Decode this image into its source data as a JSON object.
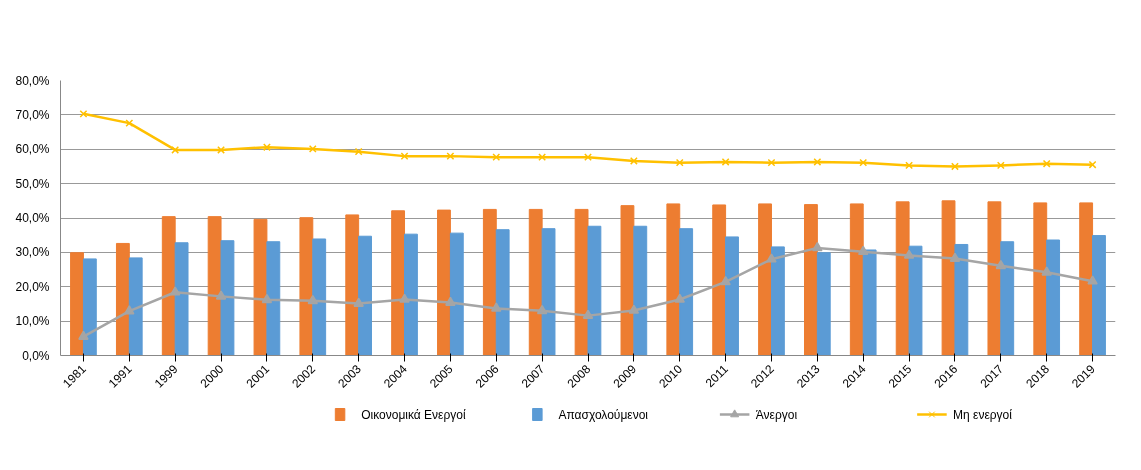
{
  "chart_data": {
    "type": "bar",
    "categories": [
      "1981",
      "1991",
      "1999",
      "2000",
      "2001",
      "2002",
      "2003",
      "2004",
      "2005",
      "2006",
      "2007",
      "2008",
      "2009",
      "2010",
      "2011",
      "2012",
      "2013",
      "2014",
      "2015",
      "2016",
      "2017",
      "2018",
      "2019"
    ],
    "series": [
      {
        "name": "Οικονομικά Ενεργοί",
        "color": "#ed7d31",
        "values": [
          29.9,
          32.6,
          40.4,
          40.4,
          39.6,
          40.1,
          40.9,
          42.1,
          42.3,
          42.5,
          42.5,
          42.5,
          43.6,
          44.1,
          43.8,
          44.1,
          43.9,
          44.1,
          44.7,
          45.0,
          44.7,
          44.4,
          44.4
        ]
      },
      {
        "name": "Απασχολούμενοι",
        "color": "#5b9bd5",
        "values": [
          28.1,
          28.4,
          32.8,
          33.4,
          33.1,
          33.9,
          34.7,
          35.3,
          35.6,
          36.6,
          36.9,
          37.6,
          37.6,
          36.9,
          34.5,
          31.6,
          29.9,
          30.7,
          31.8,
          32.3,
          33.1,
          33.6,
          34.9
        ]
      },
      {
        "name": "Άνεργοι",
        "color": "#a5a5a5",
        "type": "line",
        "marker": "triangle",
        "values": [
          5.5,
          12.9,
          18.4,
          17.2,
          16.2,
          15.9,
          15.1,
          16.3,
          15.4,
          13.7,
          13.0,
          11.6,
          13.1,
          16.3,
          21.4,
          28.0,
          31.3,
          30.2,
          29.1,
          28.2,
          26.1,
          24.2,
          21.6
        ]
      },
      {
        "name": "Μη ενεργοί",
        "color": "#ffc000",
        "type": "line",
        "marker": "cross",
        "values": [
          70.3,
          67.6,
          59.8,
          59.8,
          60.6,
          60.1,
          59.3,
          58.0,
          58.0,
          57.7,
          57.7,
          57.7,
          56.6,
          56.1,
          56.3,
          56.1,
          56.3,
          56.1,
          55.3,
          55.0,
          55.3,
          55.8,
          55.5
        ]
      }
    ],
    "ylim": [
      0,
      80
    ],
    "yticks": [
      {
        "value": 0,
        "label": "0,0%"
      },
      {
        "value": 10,
        "label": "10,0%"
      },
      {
        "value": 20,
        "label": "20,0%"
      },
      {
        "value": 30,
        "label": "30,0%"
      },
      {
        "value": 40,
        "label": "40,0%"
      },
      {
        "value": 50,
        "label": "50,0%"
      },
      {
        "value": 60,
        "label": "60,0%"
      },
      {
        "value": 70,
        "label": "70,0%"
      },
      {
        "value": 80,
        "label": "80,0%"
      }
    ],
    "grid": "y",
    "legend": "bottom"
  }
}
